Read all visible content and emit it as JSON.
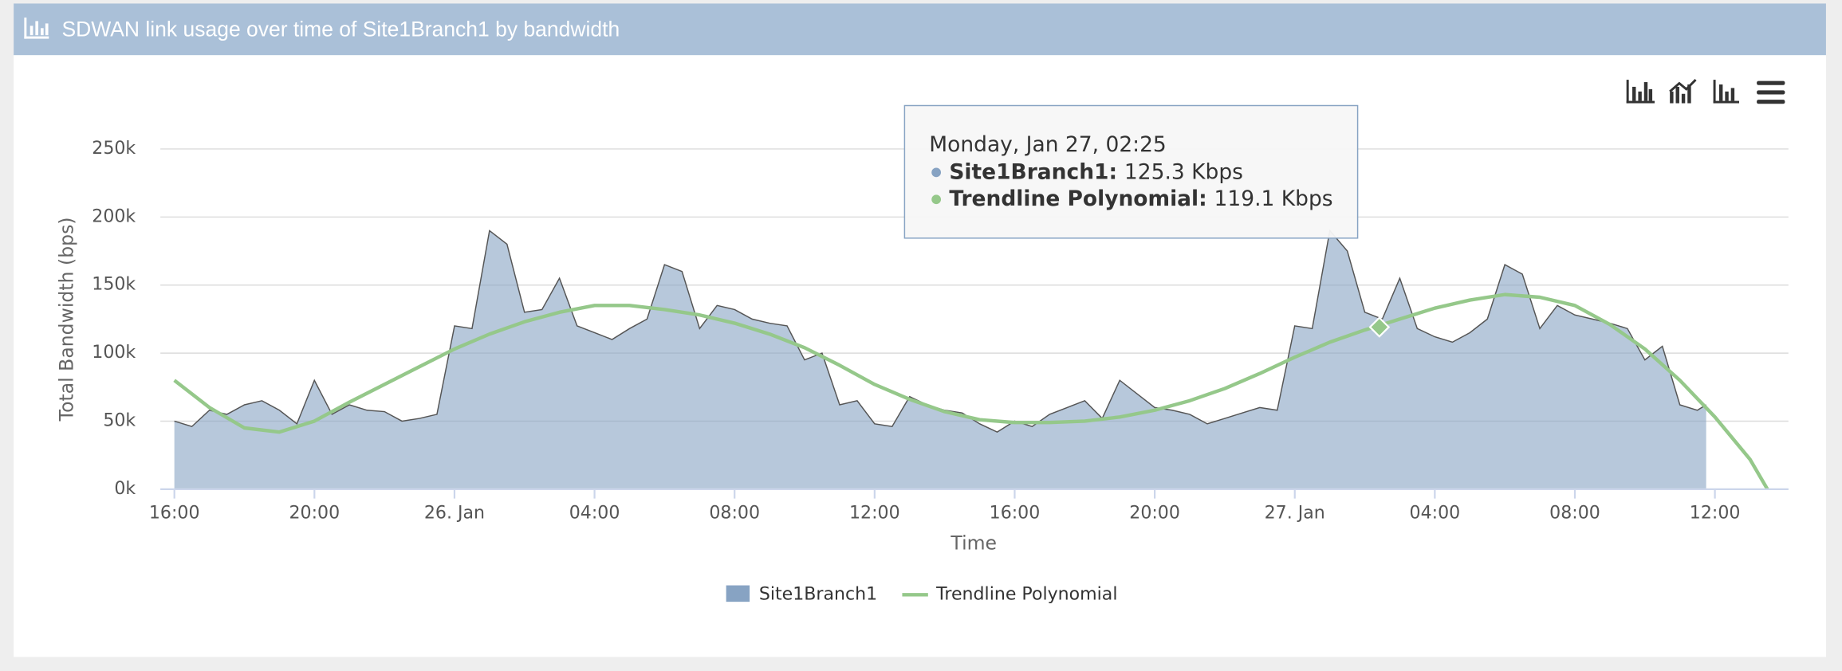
{
  "chart_data": {
    "type": "area",
    "title": "SDWAN link usage over time of Site1Branch1 by bandwidth",
    "y_axis_label": "Total Bandwidth (bps)",
    "x_axis_label": "Time",
    "xlim": [
      "Jan 25, 15:36",
      "Jan 27, 14:06"
    ],
    "xticks": [
      {
        "value": "Jan 25, 16:00",
        "label": "16:00"
      },
      {
        "value": "Jan 25, 20:00",
        "label": "20:00"
      },
      {
        "value": "Jan 26, 00:00",
        "label": "26. Jan"
      },
      {
        "value": "Jan 26, 04:00",
        "label": "04:00"
      },
      {
        "value": "Jan 26, 08:00",
        "label": "08:00"
      },
      {
        "value": "Jan 26, 12:00",
        "label": "12:00"
      },
      {
        "value": "Jan 26, 16:00",
        "label": "16:00"
      },
      {
        "value": "Jan 26, 20:00",
        "label": "20:00"
      },
      {
        "value": "Jan 27, 00:00",
        "label": "27. Jan"
      },
      {
        "value": "Jan 27, 04:00",
        "label": "04:00"
      },
      {
        "value": "Jan 27, 08:00",
        "label": "08:00"
      },
      {
        "value": "Jan 27, 12:00",
        "label": "12:00"
      }
    ],
    "ylim": [
      0,
      250000
    ],
    "yticks": [
      {
        "value": 0,
        "label": "0k"
      },
      {
        "value": 50000,
        "label": "50k"
      },
      {
        "value": 100000,
        "label": "100k"
      },
      {
        "value": 150000,
        "label": "150k"
      },
      {
        "value": 200000,
        "label": "200k"
      },
      {
        "value": 250000,
        "label": "250k"
      }
    ],
    "grid": true,
    "series": [
      {
        "name": "Site1Branch1",
        "color": "#87a3c3",
        "kind": "area",
        "x": [
          "Jan 25, 16:00",
          "Jan 25, 16:30",
          "Jan 25, 17:00",
          "Jan 25, 17:30",
          "Jan 25, 18:00",
          "Jan 25, 18:30",
          "Jan 25, 19:00",
          "Jan 25, 19:30",
          "Jan 25, 20:00",
          "Jan 25, 20:30",
          "Jan 25, 21:00",
          "Jan 25, 21:30",
          "Jan 25, 22:00",
          "Jan 25, 22:30",
          "Jan 25, 23:00",
          "Jan 25, 23:30",
          "Jan 26, 00:00",
          "Jan 26, 00:30",
          "Jan 26, 01:00",
          "Jan 26, 01:30",
          "Jan 26, 02:00",
          "Jan 26, 02:30",
          "Jan 26, 03:00",
          "Jan 26, 03:30",
          "Jan 26, 04:00",
          "Jan 26, 04:30",
          "Jan 26, 05:00",
          "Jan 26, 05:30",
          "Jan 26, 06:00",
          "Jan 26, 06:30",
          "Jan 26, 07:00",
          "Jan 26, 07:30",
          "Jan 26, 08:00",
          "Jan 26, 08:30",
          "Jan 26, 09:00",
          "Jan 26, 09:30",
          "Jan 26, 10:00",
          "Jan 26, 10:30",
          "Jan 26, 11:00",
          "Jan 26, 11:30",
          "Jan 26, 12:00",
          "Jan 26, 12:30",
          "Jan 26, 13:00",
          "Jan 26, 13:30",
          "Jan 26, 14:00",
          "Jan 26, 14:30",
          "Jan 26, 15:00",
          "Jan 26, 15:30",
          "Jan 26, 16:00",
          "Jan 26, 16:30",
          "Jan 26, 17:00",
          "Jan 26, 17:30",
          "Jan 26, 18:00",
          "Jan 26, 18:30",
          "Jan 26, 19:00",
          "Jan 26, 19:30",
          "Jan 26, 20:00",
          "Jan 26, 20:30",
          "Jan 26, 21:00",
          "Jan 26, 21:30",
          "Jan 26, 22:00",
          "Jan 26, 22:30",
          "Jan 26, 23:00",
          "Jan 26, 23:30",
          "Jan 27, 00:00",
          "Jan 27, 00:30",
          "Jan 27, 01:00",
          "Jan 27, 01:30",
          "Jan 27, 02:00",
          "Jan 27, 02:30",
          "Jan 27, 03:00",
          "Jan 27, 03:30",
          "Jan 27, 04:00",
          "Jan 27, 04:30",
          "Jan 27, 05:00",
          "Jan 27, 05:30",
          "Jan 27, 06:00",
          "Jan 27, 06:30",
          "Jan 27, 07:00",
          "Jan 27, 07:30",
          "Jan 27, 08:00",
          "Jan 27, 08:30",
          "Jan 27, 09:00",
          "Jan 27, 09:30",
          "Jan 27, 10:00",
          "Jan 27, 10:30",
          "Jan 27, 11:00",
          "Jan 27, 11:30",
          "Jan 27, 11:45"
        ],
        "values": [
          50000,
          46000,
          58000,
          55000,
          62000,
          65000,
          58000,
          48000,
          80000,
          55000,
          62000,
          58000,
          57000,
          50000,
          52000,
          55000,
          120000,
          118000,
          190000,
          180000,
          130000,
          132000,
          155000,
          120000,
          115000,
          110000,
          118000,
          125000,
          165000,
          160000,
          118000,
          135000,
          132000,
          125000,
          122000,
          120000,
          95000,
          100000,
          62000,
          65000,
          48000,
          46000,
          68000,
          62000,
          58000,
          56000,
          48000,
          42000,
          50000,
          46000,
          55000,
          60000,
          65000,
          52000,
          80000,
          70000,
          60000,
          58000,
          55000,
          48000,
          52000,
          56000,
          60000,
          58000,
          120000,
          118000,
          190000,
          175000,
          130000,
          125000,
          155000,
          118000,
          112000,
          108000,
          115000,
          125000,
          165000,
          158000,
          118000,
          135000,
          128000,
          125000,
          122000,
          118000,
          95000,
          105000,
          62000,
          58000,
          62000
        ]
      },
      {
        "name": "Trendline Polynomial",
        "color": "#95c88a",
        "kind": "line",
        "x": [
          "Jan 25, 16:00",
          "Jan 25, 17:00",
          "Jan 25, 18:00",
          "Jan 25, 19:00",
          "Jan 25, 20:00",
          "Jan 25, 21:00",
          "Jan 25, 22:00",
          "Jan 25, 23:00",
          "Jan 26, 00:00",
          "Jan 26, 01:00",
          "Jan 26, 02:00",
          "Jan 26, 03:00",
          "Jan 26, 04:00",
          "Jan 26, 05:00",
          "Jan 26, 06:00",
          "Jan 26, 07:00",
          "Jan 26, 08:00",
          "Jan 26, 09:00",
          "Jan 26, 10:00",
          "Jan 26, 11:00",
          "Jan 26, 12:00",
          "Jan 26, 13:00",
          "Jan 26, 14:00",
          "Jan 26, 15:00",
          "Jan 26, 16:00",
          "Jan 26, 17:00",
          "Jan 26, 18:00",
          "Jan 26, 19:00",
          "Jan 26, 20:00",
          "Jan 26, 21:00",
          "Jan 26, 22:00",
          "Jan 26, 23:00",
          "Jan 27, 00:00",
          "Jan 27, 01:00",
          "Jan 27, 02:00",
          "Jan 27, 03:00",
          "Jan 27, 04:00",
          "Jan 27, 05:00",
          "Jan 27, 06:00",
          "Jan 27, 07:00",
          "Jan 27, 08:00",
          "Jan 27, 09:00",
          "Jan 27, 10:00",
          "Jan 27, 11:00",
          "Jan 27, 12:00",
          "Jan 27, 13:00",
          "Jan 27, 13:30"
        ],
        "values": [
          80000,
          60000,
          45000,
          42000,
          50000,
          64000,
          77000,
          90000,
          103000,
          114000,
          123000,
          130000,
          135000,
          135000,
          132000,
          128000,
          122000,
          114000,
          104000,
          91000,
          77000,
          66000,
          57000,
          51000,
          49000,
          49000,
          50000,
          53000,
          58000,
          65000,
          74000,
          85000,
          97000,
          108000,
          117000,
          125000,
          133000,
          139000,
          143000,
          141000,
          135000,
          121000,
          103000,
          80000,
          53000,
          22000,
          0
        ]
      }
    ],
    "tooltip": {
      "x": "Jan 27, 02:25",
      "y": 119100,
      "header": "Monday, Jan 27, 02:25",
      "rows": [
        {
          "label": "Site1Branch1:",
          "value_label": "125.3 Kbps"
        },
        {
          "label": "Trendline Polynomial:",
          "value_label": "119.1 Kbps"
        }
      ]
    }
  }
}
